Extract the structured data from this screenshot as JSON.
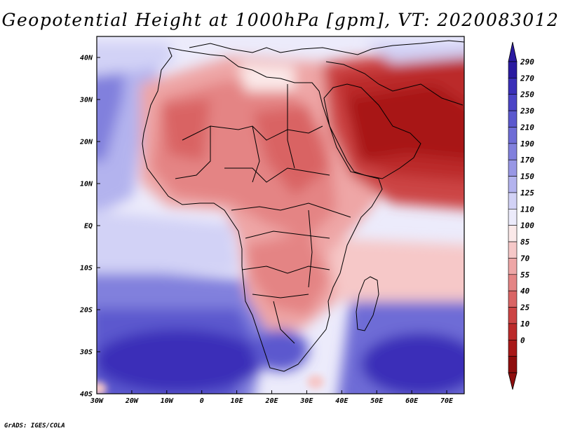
{
  "title": "Geopotential Height at 1000hPa [gpm], VT: 2020083012",
  "credit": "GrADS: IGES/COLA",
  "map": {
    "projection": "latlon",
    "lon_range": [
      -30,
      75
    ],
    "lat_range": [
      -40,
      45
    ],
    "lat_labels": [
      "40N",
      "30N",
      "20N",
      "10N",
      "EQ",
      "10S",
      "20S",
      "30S",
      "40S"
    ],
    "lat_values": [
      40,
      30,
      20,
      10,
      0,
      -10,
      -20,
      -30,
      -40
    ],
    "lon_labels": [
      "30W",
      "20W",
      "10W",
      "0",
      "10E",
      "20E",
      "30E",
      "40E",
      "50E",
      "60E",
      "70E"
    ],
    "lon_values": [
      -30,
      -20,
      -10,
      0,
      10,
      20,
      30,
      40,
      50,
      60,
      70
    ],
    "field": "Geopotential Height 1000hPa",
    "units": "gpm",
    "valid_time": "2020083012"
  },
  "colorbar": {
    "levels": [
      "290",
      "270",
      "250",
      "230",
      "210",
      "190",
      "170",
      "150",
      "125",
      "110",
      "100",
      "85",
      "70",
      "55",
      "40",
      "25",
      "10",
      "0"
    ],
    "colors": [
      "#2a1aa0",
      "#3a2fb8",
      "#4b44c6",
      "#5b58ce",
      "#6e6cd6",
      "#8180dd",
      "#9897e5",
      "#b3b3ee",
      "#d2d2f6",
      "#ecebfb",
      "#fbe9e9",
      "#f6c8c8",
      "#eea6a6",
      "#e48484",
      "#d96464",
      "#cc4444",
      "#bb2a2a",
      "#a81818",
      "#8e0d0d"
    ]
  }
}
